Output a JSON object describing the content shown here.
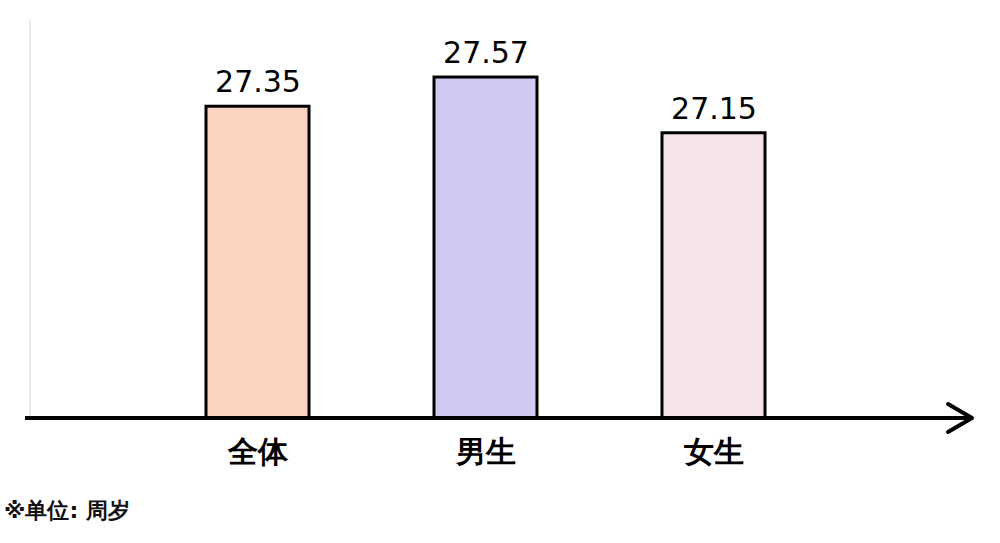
{
  "chart_data": {
    "type": "bar",
    "caption": "※单位: 周岁",
    "categories": [
      "全体",
      "男生",
      "女生"
    ],
    "values": [
      27.35,
      27.57,
      27.15
    ],
    "colors": [
      "#fbd3c0",
      "#cfcaf2",
      "#f6e3ea"
    ],
    "ylim": [
      25,
      28
    ],
    "data_labels": true,
    "tick_labels": "x",
    "grid": false
  }
}
